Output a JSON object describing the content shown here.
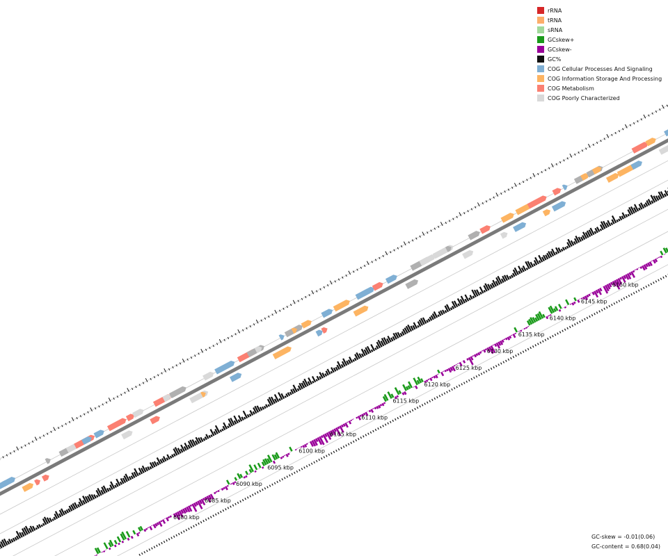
{
  "legend": [
    {
      "label": "rRNA",
      "color": "#d62728"
    },
    {
      "label": "tRNA",
      "color": "#fdae6b"
    },
    {
      "label": "sRNA",
      "color": "#a1d99b"
    },
    {
      "label": "GCskew+",
      "color": "#1a9a1a"
    },
    {
      "label": "GCskew-",
      "color": "#990099"
    },
    {
      "label": "GC%",
      "color": "#111111"
    },
    {
      "label": "COG Cellular Processes And Signaling",
      "color": "#7fafd4"
    },
    {
      "label": "COG Information Storage And Processing",
      "color": "#fdb462"
    },
    {
      "label": "COG Metabolism",
      "color": "#fb8072"
    },
    {
      "label": "COG Poorly Characterized",
      "color": "#d9d9d9"
    }
  ],
  "axis": {
    "unit": "kbp",
    "ticks": [
      {
        "value": 6080,
        "label": "6080 kbp"
      },
      {
        "value": 6085,
        "label": "6085 kbp"
      },
      {
        "value": 6090,
        "label": "6090 kbp"
      },
      {
        "value": 6095,
        "label": "6095 kbp"
      },
      {
        "value": 6100,
        "label": "6100 kbp"
      },
      {
        "value": 6105,
        "label": "6105 kbp"
      },
      {
        "value": 6110,
        "label": "6110 kbp"
      },
      {
        "value": 6115,
        "label": "6115 kbp"
      },
      {
        "value": 6120,
        "label": "6120 kbp"
      },
      {
        "value": 6125,
        "label": "6125 kbp"
      },
      {
        "value": 6130,
        "label": "6130 kbp"
      },
      {
        "value": 6135,
        "label": "6135 kbp"
      },
      {
        "value": 6140,
        "label": "6140 kbp"
      },
      {
        "value": 6145,
        "label": "6145 kbp"
      },
      {
        "value": 6150,
        "label": "6150 kbp"
      }
    ]
  },
  "stats": {
    "gc_skew": "GC-skew = -0.01(0.06)",
    "gc_content": "GC-content = 0.68(0.04)"
  }
}
